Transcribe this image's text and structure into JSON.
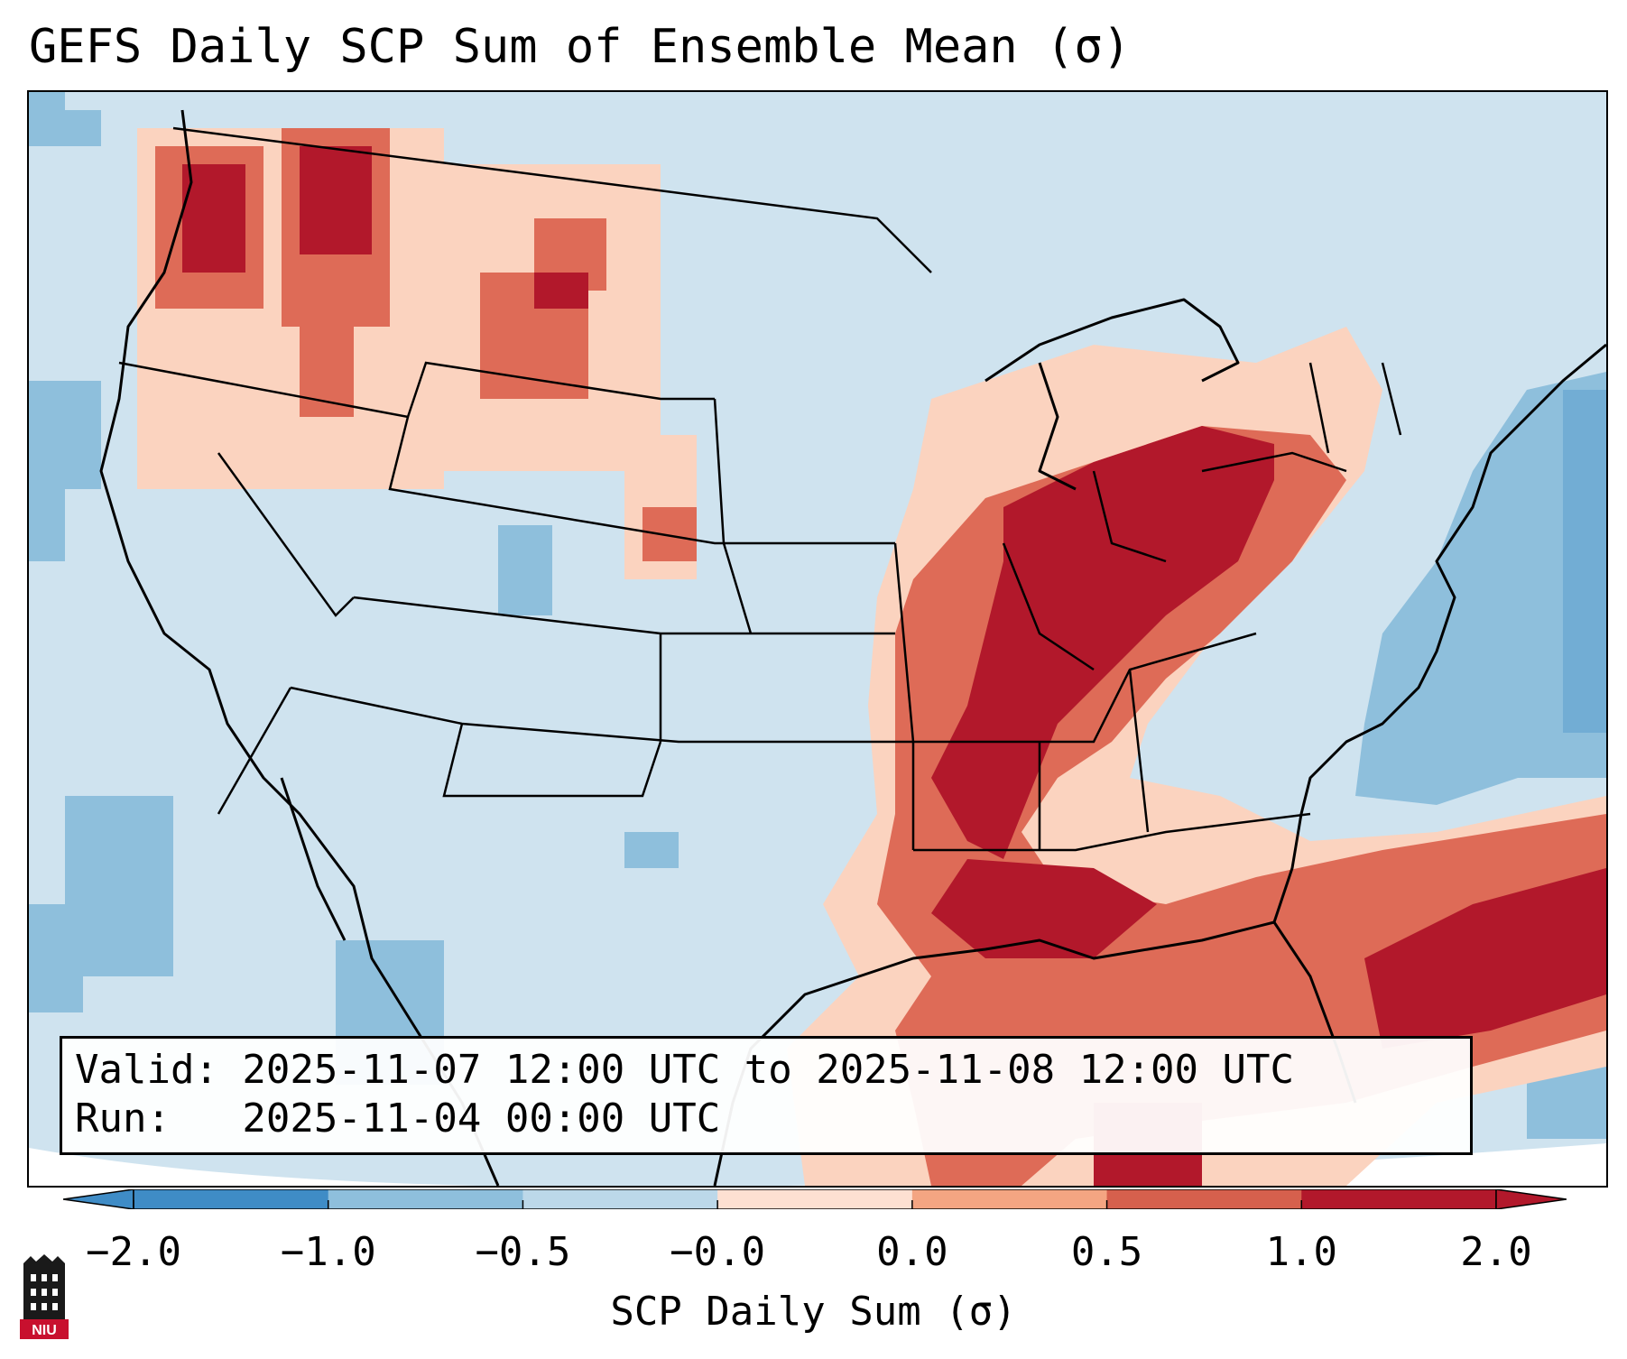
{
  "title": "GEFS Daily SCP Sum of Ensemble Mean (σ)",
  "info": {
    "valid_line": "Valid: 2025-11-07 12:00 UTC to 2025-11-08 12:00 UTC",
    "run_line": "Run:   2025-11-04 00:00 UTC"
  },
  "colorbar": {
    "label": "SCP Daily Sum (σ)",
    "ticks": [
      "−2.0",
      "−1.0",
      "−0.5",
      "−0.0",
      "0.0",
      "0.5",
      "1.0",
      "2.0"
    ],
    "colors": [
      "#3f8cc6",
      "#8ebfdc",
      "#bcd8e9",
      "#ddeaf3",
      "#fde0d2",
      "#f4a582",
      "#d6604d",
      "#b2182b"
    ],
    "extend": "both"
  },
  "legend_colors": {
    "neg_strong": "#8ebfdc",
    "neutral": "#cfe3ef",
    "pos_light": "#fbd3bf",
    "pos_medium": "#de6b57",
    "pos_strong": "#b2182b"
  },
  "logo": {
    "name": "NIU",
    "text": "NIU"
  }
}
